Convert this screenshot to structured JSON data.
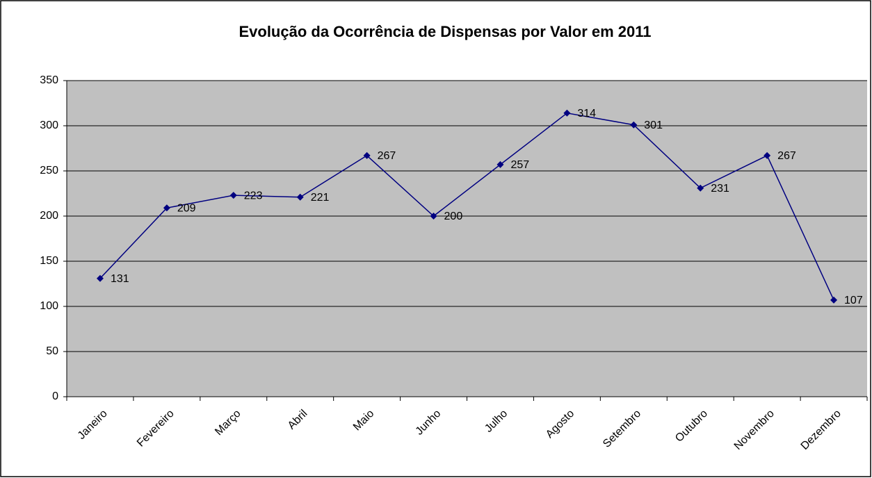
{
  "chart_data": {
    "type": "line",
    "title": "Evolução da Ocorrência de Dispensas por Valor em 2011",
    "categories": [
      "Janeiro",
      "Fevereiro",
      "Março",
      "Abril",
      "Maio",
      "Junho",
      "Julho",
      "Agosto",
      "Setembro",
      "Outubro",
      "Novembro",
      "Dezembro"
    ],
    "values": [
      131,
      209,
      223,
      221,
      267,
      200,
      257,
      314,
      301,
      231,
      267,
      107
    ],
    "color": "#000080",
    "ylim": [
      0,
      350
    ],
    "yticks": [
      0,
      50,
      100,
      150,
      200,
      250,
      300,
      350
    ],
    "grid": true
  }
}
